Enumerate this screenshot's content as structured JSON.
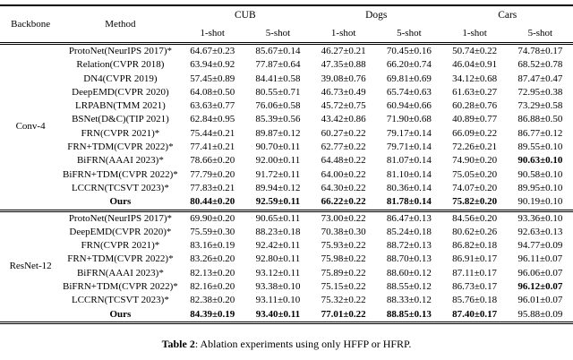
{
  "table": {
    "header": {
      "backbone": "Backbone",
      "method": "Method",
      "groups": [
        "CUB",
        "Dogs",
        "Cars"
      ],
      "subheaders": [
        "1-shot",
        "5-shot",
        "1-shot",
        "5-shot",
        "1-shot",
        "5-shot"
      ]
    },
    "sections": [
      {
        "backbone": "Conv-4",
        "rows": [
          {
            "method": "ProtoNet(NeurIPS 2017)*",
            "method_bold": false,
            "values": [
              "64.67±0.23",
              "85.67±0.14",
              "46.27±0.21",
              "70.45±0.16",
              "50.74±0.22",
              "74.78±0.17"
            ],
            "bold": [
              false,
              false,
              false,
              false,
              false,
              false
            ]
          },
          {
            "method": "Relation(CVPR 2018)",
            "method_bold": false,
            "values": [
              "63.94±0.92",
              "77.87±0.64",
              "47.35±0.88",
              "66.20±0.74",
              "46.04±0.91",
              "68.52±0.78"
            ],
            "bold": [
              false,
              false,
              false,
              false,
              false,
              false
            ]
          },
          {
            "method": "DN4(CVPR 2019)",
            "method_bold": false,
            "values": [
              "57.45±0.89",
              "84.41±0.58",
              "39.08±0.76",
              "69.81±0.69",
              "34.12±0.68",
              "87.47±0.47"
            ],
            "bold": [
              false,
              false,
              false,
              false,
              false,
              false
            ]
          },
          {
            "method": "DeepEMD(CVPR 2020)",
            "method_bold": false,
            "values": [
              "64.08±0.50",
              "80.55±0.71",
              "46.73±0.49",
              "65.74±0.63",
              "61.63±0.27",
              "72.95±0.38"
            ],
            "bold": [
              false,
              false,
              false,
              false,
              false,
              false
            ]
          },
          {
            "method": "LRPABN(TMM 2021)",
            "method_bold": false,
            "values": [
              "63.63±0.77",
              "76.06±0.58",
              "45.72±0.75",
              "60.94±0.66",
              "60.28±0.76",
              "73.29±0.58"
            ],
            "bold": [
              false,
              false,
              false,
              false,
              false,
              false
            ]
          },
          {
            "method": "BSNet(D&C)(TIP 2021)",
            "method_bold": false,
            "values": [
              "62.84±0.95",
              "85.39±0.56",
              "43.42±0.86",
              "71.90±0.68",
              "40.89±0.77",
              "86.88±0.50"
            ],
            "bold": [
              false,
              false,
              false,
              false,
              false,
              false
            ]
          },
          {
            "method": "FRN(CVPR 2021)*",
            "method_bold": false,
            "values": [
              "75.44±0.21",
              "89.87±0.12",
              "60.27±0.22",
              "79.17±0.14",
              "66.09±0.22",
              "86.77±0.12"
            ],
            "bold": [
              false,
              false,
              false,
              false,
              false,
              false
            ]
          },
          {
            "method": "FRN+TDM(CVPR 2022)*",
            "method_bold": false,
            "values": [
              "77.41±0.21",
              "90.70±0.11",
              "62.77±0.22",
              "79.71±0.14",
              "72.26±0.21",
              "89.55±0.10"
            ],
            "bold": [
              false,
              false,
              false,
              false,
              false,
              false
            ]
          },
          {
            "method": "BiFRN(AAAI 2023)*",
            "method_bold": false,
            "values": [
              "78.66±0.20",
              "92.00±0.11",
              "64.48±0.22",
              "81.07±0.14",
              "74.90±0.20",
              "90.63±0.10"
            ],
            "bold": [
              false,
              false,
              false,
              false,
              false,
              true
            ]
          },
          {
            "method": "BiFRN+TDM(CVPR 2022)*",
            "method_bold": false,
            "values": [
              "77.79±0.20",
              "91.72±0.11",
              "64.00±0.22",
              "81.10±0.14",
              "75.05±0.20",
              "90.58±0.10"
            ],
            "bold": [
              false,
              false,
              false,
              false,
              false,
              false
            ]
          },
          {
            "method": "LCCRN(TCSVT 2023)*",
            "method_bold": false,
            "values": [
              "77.83±0.21",
              "89.94±0.12",
              "64.30±0.22",
              "80.36±0.14",
              "74.07±0.20",
              "89.95±0.10"
            ],
            "bold": [
              false,
              false,
              false,
              false,
              false,
              false
            ]
          },
          {
            "method": "Ours",
            "method_bold": true,
            "values": [
              "80.44±0.20",
              "92.59±0.11",
              "66.22±0.22",
              "81.78±0.14",
              "75.82±0.20",
              "90.19±0.10"
            ],
            "bold": [
              true,
              true,
              true,
              true,
              true,
              false
            ]
          }
        ]
      },
      {
        "backbone": "ResNet-12",
        "rows": [
          {
            "method": "ProtoNet(NeurIPS 2017)*",
            "method_bold": false,
            "values": [
              "69.90±0.20",
              "90.65±0.11",
              "73.00±0.22",
              "86.47±0.13",
              "84.56±0.20",
              "93.36±0.10"
            ],
            "bold": [
              false,
              false,
              false,
              false,
              false,
              false
            ]
          },
          {
            "method": "DeepEMD(CVPR 2020)*",
            "method_bold": false,
            "values": [
              "75.59±0.30",
              "88.23±0.18",
              "70.38±0.30",
              "85.24±0.18",
              "80.62±0.26",
              "92.63±0.13"
            ],
            "bold": [
              false,
              false,
              false,
              false,
              false,
              false
            ]
          },
          {
            "method": "FRN(CVPR 2021)*",
            "method_bold": false,
            "values": [
              "83.16±0.19",
              "92.42±0.11",
              "75.93±0.22",
              "88.72±0.13",
              "86.82±0.18",
              "94.77±0.09"
            ],
            "bold": [
              false,
              false,
              false,
              false,
              false,
              false
            ]
          },
          {
            "method": "FRN+TDM(CVPR 2022)*",
            "method_bold": false,
            "values": [
              "83.26±0.20",
              "92.80±0.11",
              "75.98±0.22",
              "88.70±0.13",
              "86.91±0.17",
              "96.11±0.07"
            ],
            "bold": [
              false,
              false,
              false,
              false,
              false,
              false
            ]
          },
          {
            "method": "BiFRN(AAAI 2023)*",
            "method_bold": false,
            "values": [
              "82.13±0.20",
              "93.12±0.11",
              "75.89±0.22",
              "88.60±0.12",
              "87.11±0.17",
              "96.06±0.07"
            ],
            "bold": [
              false,
              false,
              false,
              false,
              false,
              false
            ]
          },
          {
            "method": "BiFRN+TDM(CVPR 2022)*",
            "method_bold": false,
            "values": [
              "82.16±0.20",
              "93.38±0.10",
              "75.15±0.22",
              "88.55±0.12",
              "86.73±0.17",
              "96.12±0.07"
            ],
            "bold": [
              false,
              false,
              false,
              false,
              false,
              true
            ]
          },
          {
            "method": "LCCRN(TCSVT 2023)*",
            "method_bold": false,
            "values": [
              "82.38±0.20",
              "93.11±0.10",
              "75.32±0.22",
              "88.33±0.12",
              "85.76±0.18",
              "96.01±0.07"
            ],
            "bold": [
              false,
              false,
              false,
              false,
              false,
              false
            ]
          },
          {
            "method": "Ours",
            "method_bold": true,
            "values": [
              "84.39±0.19",
              "93.40±0.11",
              "77.01±0.22",
              "88.85±0.13",
              "87.40±0.17",
              "95.88±0.09"
            ],
            "bold": [
              true,
              true,
              true,
              true,
              true,
              false
            ]
          }
        ]
      }
    ],
    "caption": {
      "label": "Table 2",
      "text": ": Ablation experiments using only HFFP or HFRP."
    }
  }
}
